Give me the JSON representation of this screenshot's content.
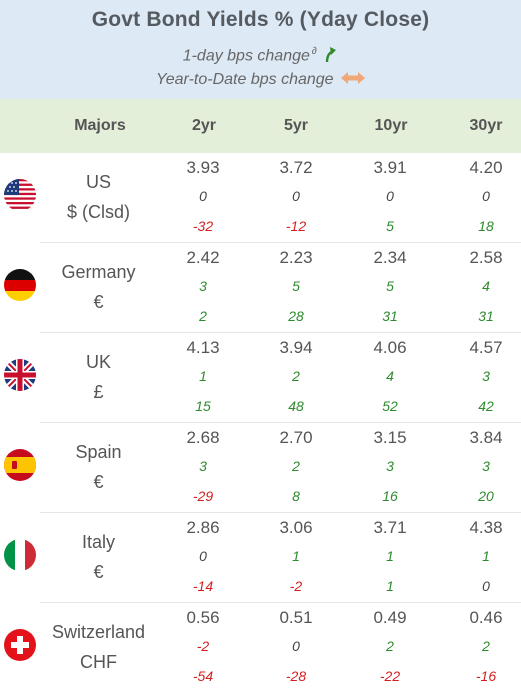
{
  "header": {
    "title": "Govt Bond Yields %  (Yday Close)",
    "legend_daily": "1-day bps change",
    "legend_daily_mark": "∂",
    "legend_ytd": "Year-to-Date bps change",
    "arrow_color": "#2e8b2e",
    "ytd_arrow_color": "#f0a878"
  },
  "columns": {
    "majors": "Majors",
    "tenors": [
      "2yr",
      "5yr",
      "10yr",
      "30yr"
    ]
  },
  "colors": {
    "header_bg": "#dde9f5",
    "colhead_bg": "#e3efd9",
    "positive": "#2e8b2e",
    "negative": "#d42020"
  },
  "rows": [
    {
      "flag": "us-flag-icon",
      "name": "US",
      "currency": "$ (Clsd)",
      "yields": [
        "3.93",
        "3.72",
        "3.91",
        "4.20"
      ],
      "daily": [
        "0",
        "0",
        "0",
        "0"
      ],
      "ytd": [
        "-32",
        "-12",
        "5",
        "18"
      ]
    },
    {
      "flag": "germany-flag-icon",
      "name": "Germany",
      "currency": "€",
      "yields": [
        "2.42",
        "2.23",
        "2.34",
        "2.58"
      ],
      "daily": [
        "3",
        "5",
        "5",
        "4"
      ],
      "ytd": [
        "2",
        "28",
        "31",
        "31"
      ]
    },
    {
      "flag": "uk-flag-icon",
      "name": "UK",
      "currency": "£",
      "yields": [
        "4.13",
        "3.94",
        "4.06",
        "4.57"
      ],
      "daily": [
        "1",
        "2",
        "4",
        "3"
      ],
      "ytd": [
        "15",
        "48",
        "52",
        "42"
      ]
    },
    {
      "flag": "spain-flag-icon",
      "name": "Spain",
      "currency": "€",
      "yields": [
        "2.68",
        "2.70",
        "3.15",
        "3.84"
      ],
      "daily": [
        "3",
        "2",
        "3",
        "3"
      ],
      "ytd": [
        "-29",
        "8",
        "16",
        "20"
      ]
    },
    {
      "flag": "italy-flag-icon",
      "name": "Italy",
      "currency": "€",
      "yields": [
        "2.86",
        "3.06",
        "3.71",
        "4.38"
      ],
      "daily": [
        "0",
        "1",
        "1",
        "1"
      ],
      "ytd": [
        "-14",
        "-2",
        "1",
        "0"
      ]
    },
    {
      "flag": "switzerland-flag-icon",
      "name": "Switzerland",
      "currency": "CHF",
      "yields": [
        "0.56",
        "0.51",
        "0.49",
        "0.46"
      ],
      "daily": [
        "-2",
        "0",
        "2",
        "2"
      ],
      "ytd": [
        "-54",
        "-28",
        "-22",
        "-16"
      ]
    }
  ]
}
